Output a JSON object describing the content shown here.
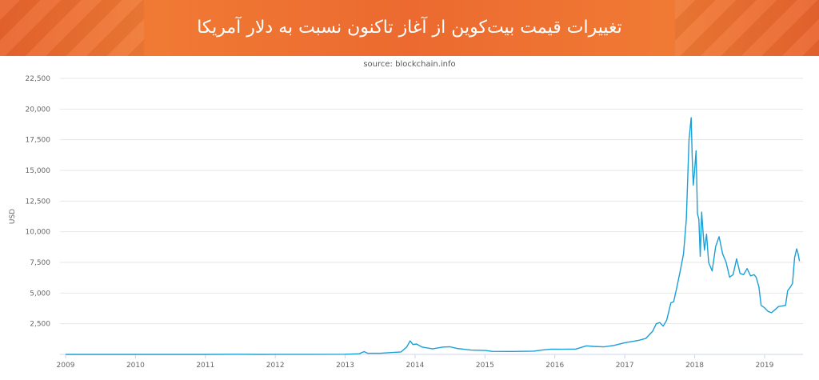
{
  "banner": {
    "title": "تغییرات قیمت بیت‌کوین از آغاز تاکنون نسبت به دلار آمریکا"
  },
  "colors": {
    "banner": "#ec6a30",
    "line": "#1a9fd6",
    "grid": "#e6e6e6"
  },
  "chart_data": {
    "type": "line",
    "subtitle": "source: blockchain.info",
    "ylabel": "USD",
    "xlabel": "",
    "ylim": [
      0,
      22500
    ],
    "xlim": [
      2009.0,
      2019.55
    ],
    "grid": true,
    "yticks": [
      {
        "value": 2500,
        "label": "2,500"
      },
      {
        "value": 5000,
        "label": "5,000"
      },
      {
        "value": 7500,
        "label": "7,500"
      },
      {
        "value": 10000,
        "label": "10,000"
      },
      {
        "value": 12500,
        "label": "12,500"
      },
      {
        "value": 15000,
        "label": "15,000"
      },
      {
        "value": 17500,
        "label": "17,500"
      },
      {
        "value": 20000,
        "label": "20,000"
      },
      {
        "value": 22500,
        "label": "22,500"
      }
    ],
    "xticks": [
      {
        "value": 2009,
        "label": "2009"
      },
      {
        "value": 2010,
        "label": "2010"
      },
      {
        "value": 2011,
        "label": "2011"
      },
      {
        "value": 2012,
        "label": "2012"
      },
      {
        "value": 2013,
        "label": "2013"
      },
      {
        "value": 2014,
        "label": "2014"
      },
      {
        "value": 2015,
        "label": "2015"
      },
      {
        "value": 2016,
        "label": "2016"
      },
      {
        "value": 2017,
        "label": "2017"
      },
      {
        "value": 2018,
        "label": "2018"
      },
      {
        "value": 2019,
        "label": "2019"
      }
    ],
    "series": [
      {
        "x": [
          2009.0,
          2010.0,
          2010.5,
          2011.0,
          2011.45,
          2011.8,
          2012.0,
          2012.5,
          2013.0,
          2013.2,
          2013.27,
          2013.32,
          2013.5,
          2013.8,
          2013.88,
          2013.93,
          2013.97,
          2014.02,
          2014.1,
          2014.25,
          2014.4,
          2014.5,
          2014.6,
          2014.8,
          2015.0,
          2015.1,
          2015.4,
          2015.7,
          2015.85,
          2015.95,
          2016.1,
          2016.3,
          2016.45,
          2016.55,
          2016.7,
          2016.85,
          2017.0,
          2017.1,
          2017.2,
          2017.3,
          2017.4,
          2017.45,
          2017.5,
          2017.55,
          2017.6,
          2017.66,
          2017.7,
          2017.75,
          2017.8,
          2017.84,
          2017.88,
          2017.92,
          2017.95,
          2017.965,
          2017.98,
          2018.0,
          2018.02,
          2018.04,
          2018.06,
          2018.08,
          2018.1,
          2018.12,
          2018.14,
          2018.17,
          2018.2,
          2018.25,
          2018.3,
          2018.35,
          2018.4,
          2018.45,
          2018.5,
          2018.55,
          2018.6,
          2018.65,
          2018.7,
          2018.75,
          2018.8,
          2018.85,
          2018.88,
          2018.92,
          2018.95,
          2019.0,
          2019.05,
          2019.1,
          2019.2,
          2019.3,
          2019.33,
          2019.37,
          2019.4,
          2019.43,
          2019.46,
          2019.48,
          2019.5
        ],
        "values": [
          0,
          0,
          0.06,
          0.3,
          15,
          3,
          5,
          7,
          13,
          50,
          230,
          100,
          90,
          200,
          600,
          1100,
          800,
          850,
          600,
          450,
          600,
          620,
          480,
          350,
          320,
          250,
          240,
          270,
          380,
          430,
          420,
          440,
          700,
          650,
          610,
          740,
          950,
          1050,
          1150,
          1300,
          1900,
          2500,
          2600,
          2300,
          2800,
          4200,
          4300,
          5600,
          7000,
          8200,
          11000,
          17500,
          19300,
          16000,
          13800,
          15000,
          16600,
          11500,
          11000,
          8000,
          11600,
          10000,
          8500,
          9800,
          7500,
          6800,
          8800,
          9600,
          8200,
          7500,
          6300,
          6500,
          7800,
          6600,
          6500,
          7000,
          6400,
          6500,
          6300,
          5500,
          4000,
          3800,
          3500,
          3400,
          3900,
          4000,
          5200,
          5500,
          5800,
          7900,
          8600,
          8200,
          7600
        ]
      }
    ]
  }
}
